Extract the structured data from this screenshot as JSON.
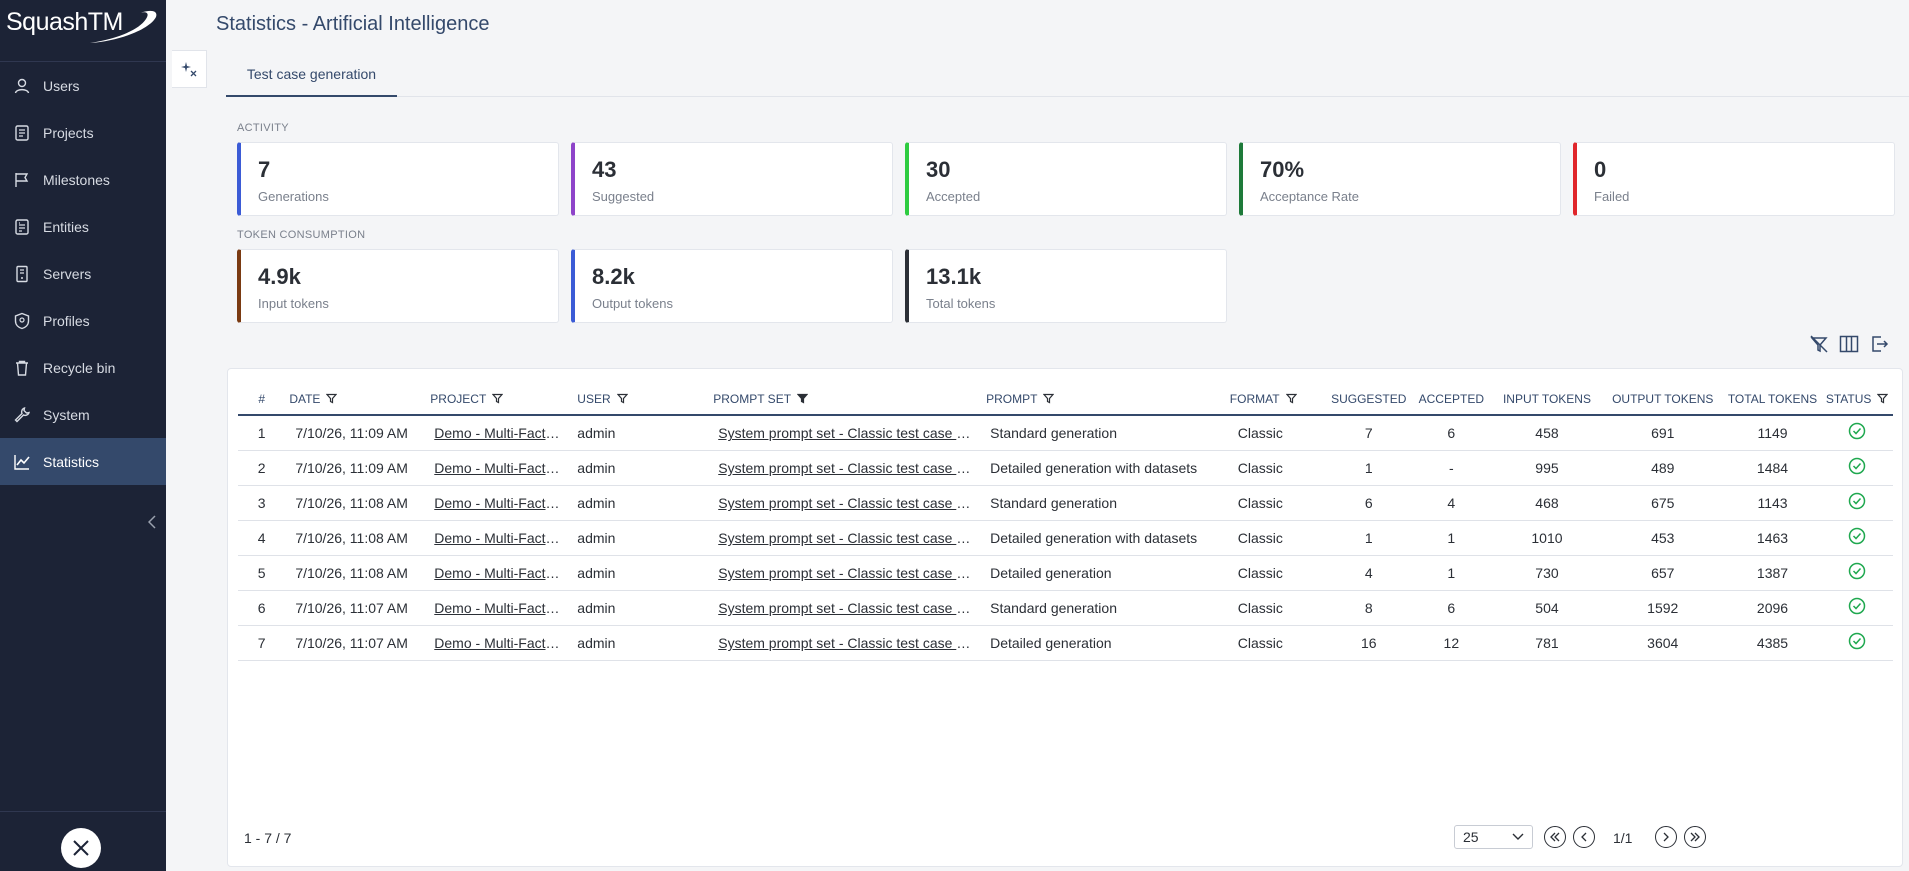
{
  "app": {
    "logo": "SquashTM"
  },
  "sidebar": {
    "items": [
      {
        "label": "Users",
        "icon": "user-icon"
      },
      {
        "label": "Projects",
        "icon": "projects-icon"
      },
      {
        "label": "Milestones",
        "icon": "flag-icon"
      },
      {
        "label": "Entities",
        "icon": "entities-icon"
      },
      {
        "label": "Servers",
        "icon": "server-icon"
      },
      {
        "label": "Profiles",
        "icon": "shield-icon"
      },
      {
        "label": "Recycle bin",
        "icon": "trash-icon"
      },
      {
        "label": "System",
        "icon": "wrench-icon"
      },
      {
        "label": "Statistics",
        "icon": "chart-icon",
        "active": true
      }
    ]
  },
  "header": {
    "title": "Statistics - Artificial Intelligence"
  },
  "tabs": [
    {
      "label": "Test case generation",
      "active": true
    }
  ],
  "activity": {
    "label": "ACTIVITY",
    "cards": [
      {
        "value": "7",
        "label": "Generations",
        "color": "#3b5bd6"
      },
      {
        "value": "43",
        "label": "Suggested",
        "color": "#8e44c9"
      },
      {
        "value": "30",
        "label": "Accepted",
        "color": "#2ecc40"
      },
      {
        "value": "70%",
        "label": "Acceptance Rate",
        "color": "#1e7a3a"
      },
      {
        "value": "0",
        "label": "Failed",
        "color": "#e0262b"
      }
    ]
  },
  "tokens": {
    "label": "TOKEN CONSUMPTION",
    "cards": [
      {
        "value": "4.9k",
        "label": "Input tokens",
        "color": "#7a3a12"
      },
      {
        "value": "8.2k",
        "label": "Output tokens",
        "color": "#3b5bd6"
      },
      {
        "value": "13.1k",
        "label": "Total tokens",
        "color": "#2b2f36"
      }
    ]
  },
  "toolbar": {
    "icons": [
      "clear-filter-icon",
      "columns-icon",
      "export-icon"
    ]
  },
  "table": {
    "columns": [
      {
        "label": "#",
        "filter": false
      },
      {
        "label": "DATE",
        "filter": true
      },
      {
        "label": "PROJECT",
        "filter": true
      },
      {
        "label": "USER",
        "filter": true
      },
      {
        "label": "PROMPT SET",
        "filter": true,
        "filter_active": true
      },
      {
        "label": "PROMPT",
        "filter": true
      },
      {
        "label": "FORMAT",
        "filter": true
      },
      {
        "label": "SUGGESTED",
        "filter": false
      },
      {
        "label": "ACCEPTED",
        "filter": false
      },
      {
        "label": "INPUT TOKENS",
        "filter": false
      },
      {
        "label": "OUTPUT TOKENS",
        "filter": false
      },
      {
        "label": "TOTAL TOKENS",
        "filter": false
      },
      {
        "label": "STATUS",
        "filter": true
      }
    ],
    "rows": [
      {
        "n": "1",
        "date": "7/10/26, 11:09 AM",
        "project": "Demo - Multi-Factor Authentication",
        "user": "admin",
        "prompt_set": "System prompt set - Classic test case generation",
        "prompt": "Standard generation",
        "format": "Classic",
        "suggested": "7",
        "accepted": "6",
        "input": "458",
        "output": "691",
        "total": "1149",
        "status": "success"
      },
      {
        "n": "2",
        "date": "7/10/26, 11:09 AM",
        "project": "Demo - Multi-Factor Authentication",
        "user": "admin",
        "prompt_set": "System prompt set - Classic test case generation",
        "prompt": "Detailed generation with datasets",
        "format": "Classic",
        "suggested": "1",
        "accepted": "-",
        "input": "995",
        "output": "489",
        "total": "1484",
        "status": "success"
      },
      {
        "n": "3",
        "date": "7/10/26, 11:08 AM",
        "project": "Demo - Multi-Factor Authentication",
        "user": "admin",
        "prompt_set": "System prompt set - Classic test case generation",
        "prompt": "Standard generation",
        "format": "Classic",
        "suggested": "6",
        "accepted": "4",
        "input": "468",
        "output": "675",
        "total": "1143",
        "status": "success"
      },
      {
        "n": "4",
        "date": "7/10/26, 11:08 AM",
        "project": "Demo - Multi-Factor Authentication",
        "user": "admin",
        "prompt_set": "System prompt set - Classic test case generation",
        "prompt": "Detailed generation with datasets",
        "format": "Classic",
        "suggested": "1",
        "accepted": "1",
        "input": "1010",
        "output": "453",
        "total": "1463",
        "status": "success"
      },
      {
        "n": "5",
        "date": "7/10/26, 11:08 AM",
        "project": "Demo - Multi-Factor Authentication",
        "user": "admin",
        "prompt_set": "System prompt set - Classic test case generation",
        "prompt": "Detailed generation",
        "format": "Classic",
        "suggested": "4",
        "accepted": "1",
        "input": "730",
        "output": "657",
        "total": "1387",
        "status": "success"
      },
      {
        "n": "6",
        "date": "7/10/26, 11:07 AM",
        "project": "Demo - Multi-Factor Authentication",
        "user": "admin",
        "prompt_set": "System prompt set - Classic test case generation",
        "prompt": "Standard generation",
        "format": "Classic",
        "suggested": "8",
        "accepted": "6",
        "input": "504",
        "output": "1592",
        "total": "2096",
        "status": "success"
      },
      {
        "n": "7",
        "date": "7/10/26, 11:07 AM",
        "project": "Demo - Multi-Factor Authentication",
        "user": "admin",
        "prompt_set": "System prompt set - Classic test case generation",
        "prompt": "Detailed generation",
        "format": "Classic",
        "suggested": "16",
        "accepted": "12",
        "input": "781",
        "output": "3604",
        "total": "4385",
        "status": "success"
      }
    ]
  },
  "pagination": {
    "range": "1 - 7 / 7",
    "page_size": "25",
    "page": "1/1"
  }
}
